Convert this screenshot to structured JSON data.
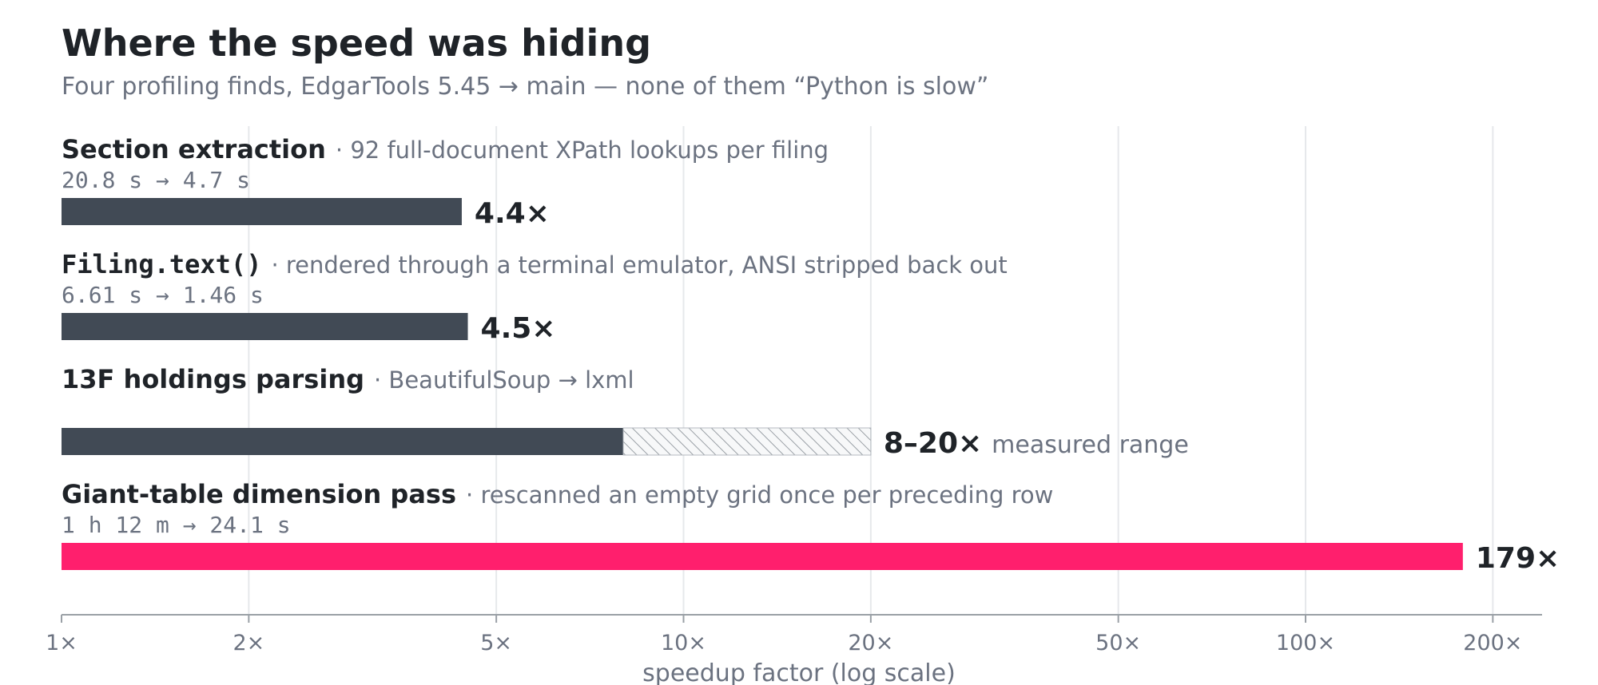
{
  "chart_data": {
    "type": "bar",
    "orientation": "horizontal",
    "title": "Where the speed was hiding",
    "subtitle": "Four profiling finds, EdgarTools 5.45 → main — none of them “Python is slow”",
    "xlabel": "speedup factor (log scale)",
    "x_scale": "log",
    "xlim": [
      1,
      240
    ],
    "grid": "vertical",
    "x_ticks": [
      1,
      2,
      5,
      10,
      20,
      50,
      100,
      200
    ],
    "x_tick_labels": [
      "1×",
      "2×",
      "5×",
      "10×",
      "20×",
      "50×",
      "100×",
      "200×"
    ],
    "colors": {
      "default_bar": "#414a55",
      "highlight_bar": "#ff1f6d",
      "range_hatch": "#9aa0a6",
      "grid": "#e6e8eb"
    },
    "rows": [
      {
        "title": "Section extraction",
        "title_mono": false,
        "description": "· 92 full-document XPath lookups per filing",
        "timing": "20.8 s → 4.7 s",
        "value": 4.4,
        "value_label": "4.4×",
        "note": "",
        "highlight": false
      },
      {
        "title": "Filing.text()",
        "title_mono": true,
        "description": "· rendered through a terminal emulator, ANSI stripped back out",
        "timing": "6.61 s → 1.46 s",
        "value": 4.5,
        "value_label": "4.5×",
        "note": "",
        "highlight": false
      },
      {
        "title": "13F holdings parsing",
        "title_mono": false,
        "description": "· BeautifulSoup → lxml",
        "timing": "",
        "value": 8,
        "range_max": 20,
        "value_label": "8–20×",
        "note": "measured range",
        "highlight": false
      },
      {
        "title": "Giant-table dimension pass",
        "title_mono": false,
        "description": "· rescanned an empty grid once per preceding row",
        "timing": "1 h 12 m → 24.1 s",
        "value": 179,
        "value_label": "179×",
        "note": "",
        "highlight": true
      }
    ]
  }
}
